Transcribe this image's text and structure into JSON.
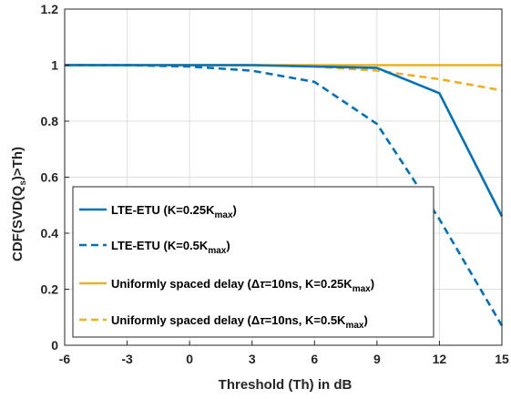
{
  "chart_data": {
    "type": "line",
    "xlabel": "Threshold (Th) in dB",
    "ylabel_parts": {
      "before": "CDF(SVD(Q",
      "sub": "s",
      "after": ")>Th)"
    },
    "xlim": [
      -6,
      15
    ],
    "ylim": [
      0,
      1.2
    ],
    "xticks": [
      -6,
      -3,
      0,
      3,
      6,
      9,
      12,
      15
    ],
    "xtick_labels": [
      "-6",
      "-3",
      "0",
      "3",
      "6",
      "9",
      "12",
      "15"
    ],
    "yticks": [
      0,
      0.2,
      0.4,
      0.6,
      0.8,
      1,
      1.2
    ],
    "ytick_labels": [
      "0",
      "0.2",
      "0.4",
      "0.6",
      "0.8",
      "1",
      "1.2"
    ],
    "grid": true,
    "legend_position": "bottom-left",
    "series": [
      {
        "legend": {
          "before": "LTE-ETU (K=0.25K",
          "sub": "max",
          "after": ")"
        },
        "color": "#0072BD",
        "dash": "solid",
        "x": [
          -6,
          -3,
          0,
          3,
          6,
          9,
          12,
          15
        ],
        "y": [
          1,
          1,
          1,
          1,
          0.995,
          0.99,
          0.9,
          0.46
        ]
      },
      {
        "legend": {
          "before": "LTE-ETU (K=0.5K",
          "sub": "max",
          "after": ")"
        },
        "color": "#0072BD",
        "dash": "dashed",
        "x": [
          -6,
          -3,
          0,
          3,
          6,
          9,
          12,
          15
        ],
        "y": [
          1,
          1,
          0.995,
          0.98,
          0.94,
          0.79,
          0.45,
          0.07
        ]
      },
      {
        "legend": {
          "before": "Uniformly spaced delay (Δ",
          "greek": "τ",
          "after": "=10ns, K=0.25K",
          "sub": "max",
          "tail": ")"
        },
        "color": "#EDB120",
        "dash": "solid",
        "x": [
          -6,
          -3,
          0,
          3,
          6,
          9,
          12,
          15
        ],
        "y": [
          1,
          1,
          1,
          1,
          1,
          1,
          1,
          1
        ]
      },
      {
        "legend": {
          "before": "Uniformly spaced delay (Δ",
          "greek": "τ",
          "after": "=10ns, K=0.5K",
          "sub": "max",
          "tail": ")"
        },
        "color": "#EDB120",
        "dash": "dashed",
        "x": [
          -6,
          -3,
          0,
          3,
          6,
          9,
          12,
          15
        ],
        "y": [
          1,
          1,
          1,
          1,
          0.995,
          0.98,
          0.95,
          0.91
        ]
      }
    ]
  }
}
